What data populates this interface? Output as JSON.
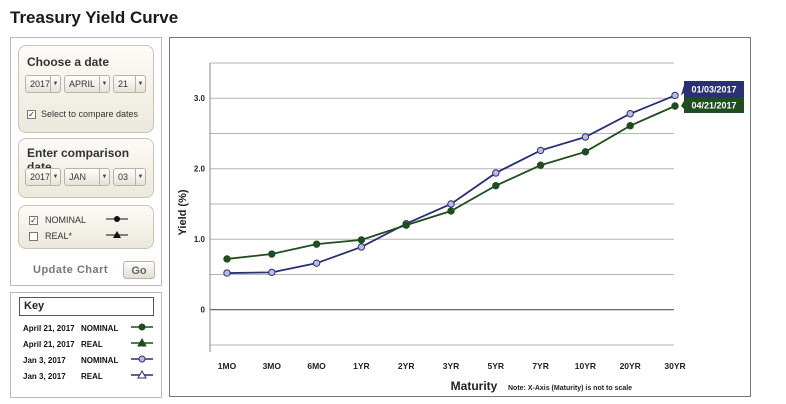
{
  "page_title": "Treasury Yield Curve",
  "choose_date": {
    "title": "Choose a date",
    "year": "2017",
    "month": "APRIL",
    "day": "21",
    "compare_checked": true,
    "compare_label": "Select to compare dates"
  },
  "comparison_date": {
    "title": "Enter comparison date",
    "year": "2017",
    "month": "JAN",
    "day": "03"
  },
  "type_toggles": [
    {
      "label": "NOMINAL",
      "checked": true,
      "marker": "circle"
    },
    {
      "label": "REAL*",
      "checked": false,
      "marker": "triangle"
    }
  ],
  "update": {
    "label": "Update Chart",
    "go": "Go"
  },
  "key": {
    "title": "Key",
    "rows": [
      {
        "date": "April 21, 2017",
        "kind": "NOMINAL",
        "marker": "circle",
        "color": "#1f4d1f"
      },
      {
        "date": "April 21, 2017",
        "kind": "REAL",
        "marker": "triangle",
        "color": "#1f4d1f"
      },
      {
        "date": "Jan 3, 2017",
        "kind": "NOMINAL",
        "marker": "circle",
        "color": "#2b2f73"
      },
      {
        "date": "Jan 3, 2017",
        "kind": "REAL",
        "marker": "triangle",
        "color": "#2b2f73"
      }
    ]
  },
  "chart_data": {
    "type": "line",
    "xlabel": "Maturity",
    "ylabel": "Yield (%)",
    "note": "Note: X-Axis (Maturity) is not to scale",
    "categories": [
      "1MO",
      "3MO",
      "6MO",
      "1YR",
      "2YR",
      "3YR",
      "5YR",
      "7YR",
      "10YR",
      "20YR",
      "30YR"
    ],
    "yticks": [
      "0",
      "1.0",
      "2.0",
      "3.0"
    ],
    "ylim": [
      -0.6,
      3.5
    ],
    "series": [
      {
        "name": "01/03/2017",
        "color": "#2b2f73",
        "marker_fill": "#b9bde0",
        "values": [
          0.52,
          0.53,
          0.66,
          0.89,
          1.22,
          1.5,
          1.94,
          2.26,
          2.45,
          2.78,
          3.04
        ]
      },
      {
        "name": "04/21/2017",
        "color": "#1f4d1f",
        "marker_fill": "#1f4d1f",
        "values": [
          0.72,
          0.79,
          0.93,
          0.99,
          1.2,
          1.4,
          1.76,
          2.05,
          2.24,
          2.61,
          2.89
        ]
      }
    ]
  }
}
